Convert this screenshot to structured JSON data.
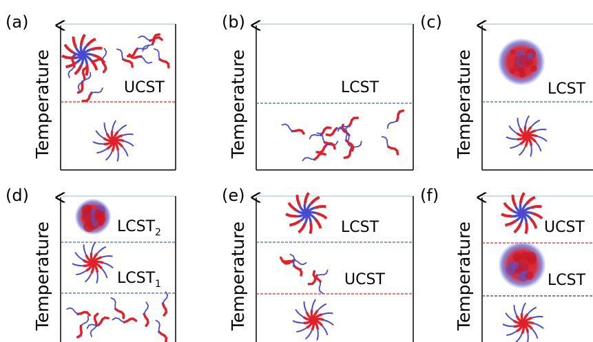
{
  "panels": [
    {
      "label": "(a)",
      "axis_label": "Temperature",
      "transitions": [
        {
          "text": "UCST"
        }
      ]
    },
    {
      "label": "(b)",
      "axis_label": "Temperature",
      "transitions": [
        {
          "text": "LCST"
        }
      ]
    },
    {
      "label": "(c)",
      "axis_label": "Temperature",
      "transitions": [
        {
          "text": "LCST"
        }
      ]
    },
    {
      "label": "(d)",
      "axis_label": "Temperature",
      "transitions": [
        {
          "text": "LCST",
          "sub": "2"
        },
        {
          "text": "LCST",
          "sub": "1"
        }
      ]
    },
    {
      "label": "(e)",
      "axis_label": "Temperature",
      "transitions": [
        {
          "text": "LCST"
        },
        {
          "text": "UCST"
        }
      ]
    },
    {
      "label": "(f)",
      "axis_label": "Temperature",
      "transitions": [
        {
          "text": "UCST"
        },
        {
          "text": "LCST"
        }
      ]
    }
  ]
}
